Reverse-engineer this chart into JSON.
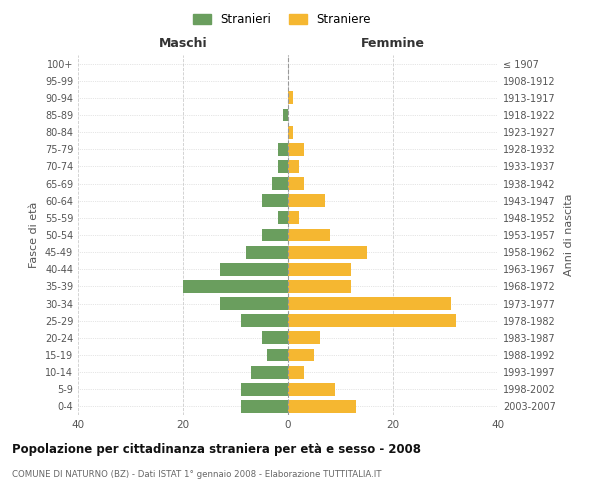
{
  "age_groups": [
    "0-4",
    "5-9",
    "10-14",
    "15-19",
    "20-24",
    "25-29",
    "30-34",
    "35-39",
    "40-44",
    "45-49",
    "50-54",
    "55-59",
    "60-64",
    "65-69",
    "70-74",
    "75-79",
    "80-84",
    "85-89",
    "90-94",
    "95-99",
    "100+"
  ],
  "birth_years": [
    "2003-2007",
    "1998-2002",
    "1993-1997",
    "1988-1992",
    "1983-1987",
    "1978-1982",
    "1973-1977",
    "1968-1972",
    "1963-1967",
    "1958-1962",
    "1953-1957",
    "1948-1952",
    "1943-1947",
    "1938-1942",
    "1933-1937",
    "1928-1932",
    "1923-1927",
    "1918-1922",
    "1913-1917",
    "1908-1912",
    "≤ 1907"
  ],
  "stranieri": [
    9,
    9,
    7,
    4,
    5,
    9,
    13,
    20,
    13,
    8,
    5,
    2,
    5,
    3,
    2,
    2,
    0,
    1,
    0,
    0,
    0
  ],
  "straniere": [
    13,
    9,
    3,
    5,
    6,
    32,
    31,
    12,
    12,
    15,
    8,
    2,
    7,
    3,
    2,
    3,
    1,
    0,
    1,
    0,
    0
  ],
  "male_color": "#6a9e5e",
  "female_color": "#f5b731",
  "title": "Popolazione per cittadinanza straniera per età e sesso - 2008",
  "subtitle": "COMUNE DI NATURNO (BZ) - Dati ISTAT 1° gennaio 2008 - Elaborazione TUTTITALIA.IT",
  "xlabel_left": "Maschi",
  "xlabel_right": "Femmine",
  "ylabel_left": "Fasce di età",
  "ylabel_right": "Anni di nascita",
  "xlim": 40,
  "legend_stranieri": "Stranieri",
  "legend_straniere": "Straniere",
  "background_color": "#ffffff",
  "grid_color": "#cccccc"
}
